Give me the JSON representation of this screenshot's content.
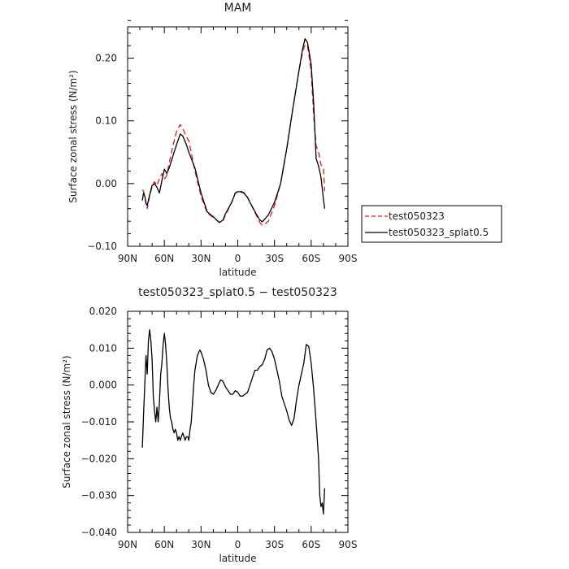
{
  "chart_data": [
    {
      "type": "line",
      "title": "MAM",
      "xlabel": "latitude",
      "ylabel": "Surface zonal stress (N/m²)",
      "xlim": [
        90,
        -90
      ],
      "ylim": [
        -0.1,
        0.25
      ],
      "x_ticks": [
        90,
        60,
        30,
        0,
        -30,
        -60,
        -90
      ],
      "x_tick_labels": [
        "90N",
        "60N",
        "30N",
        "0",
        "30S",
        "60S",
        "90S"
      ],
      "y_ticks": [
        -0.1,
        0.0,
        0.1,
        0.2
      ],
      "y_tick_labels": [
        "−0.10",
        "0.00",
        "0.10",
        "0.20"
      ],
      "legend": {
        "placement": "right",
        "entries": [
          "test050323",
          "test050323_splat0.5"
        ]
      },
      "series": [
        {
          "name": "test050323",
          "color": "#e41a1c",
          "dash": "dashed",
          "x": [
            78,
            77,
            75,
            74,
            72,
            70,
            68,
            66,
            64,
            62,
            60,
            58,
            56,
            53,
            50,
            47,
            45,
            42,
            40,
            35,
            30,
            25,
            20,
            15,
            12,
            10,
            5,
            2,
            0,
            -2,
            -5,
            -8,
            -10,
            -15,
            -18,
            -20,
            -22,
            -25,
            -30,
            -35,
            -40,
            -45,
            -50,
            -53,
            -55,
            -57,
            -60,
            -62,
            -64,
            -66,
            -68,
            -70,
            -71
          ],
          "y": [
            -0.01,
            -0.012,
            -0.03,
            -0.04,
            -0.02,
            -0.005,
            0.003,
            -0.003,
            0.008,
            0.016,
            0.007,
            0.013,
            0.033,
            0.06,
            0.083,
            0.094,
            0.088,
            0.075,
            0.068,
            0.02,
            -0.02,
            -0.047,
            -0.054,
            -0.062,
            -0.059,
            -0.05,
            -0.03,
            -0.015,
            -0.012,
            -0.012,
            -0.014,
            -0.022,
            -0.03,
            -0.05,
            -0.062,
            -0.066,
            -0.065,
            -0.06,
            -0.035,
            0.0,
            0.055,
            0.12,
            0.18,
            0.21,
            0.222,
            0.22,
            0.18,
            0.11,
            0.06,
            0.05,
            0.03,
            0.025,
            -0.012
          ]
        },
        {
          "name": "test050323_splat0.5",
          "color": "#000000",
          "dash": "solid",
          "x": [
            78,
            77,
            76,
            75,
            74,
            72,
            70,
            68,
            66,
            64,
            62,
            60,
            58,
            56,
            53,
            50,
            47,
            45,
            42,
            40,
            35,
            30,
            25,
            20,
            15,
            12,
            10,
            5,
            2,
            0,
            -2,
            -5,
            -8,
            -10,
            -15,
            -18,
            -20,
            -25,
            -30,
            -35,
            -40,
            -45,
            -50,
            -53,
            -55,
            -57,
            -60,
            -62,
            -64,
            -66,
            -68,
            -70,
            -71
          ],
          "y": [
            -0.027,
            -0.015,
            -0.02,
            -0.032,
            -0.035,
            -0.018,
            -0.003,
            0.0,
            -0.006,
            -0.015,
            0.005,
            0.023,
            0.016,
            0.025,
            0.044,
            0.062,
            0.079,
            0.076,
            0.062,
            0.05,
            0.025,
            -0.015,
            -0.045,
            -0.053,
            -0.062,
            -0.058,
            -0.048,
            -0.03,
            -0.015,
            -0.013,
            -0.013,
            -0.015,
            -0.022,
            -0.03,
            -0.048,
            -0.058,
            -0.061,
            -0.05,
            -0.03,
            0.0,
            0.055,
            0.12,
            0.18,
            0.215,
            0.231,
            0.225,
            0.19,
            0.13,
            0.04,
            0.028,
            0.01,
            -0.025,
            -0.04
          ]
        }
      ]
    },
    {
      "type": "line",
      "title": "test050323_splat0.5 − test050323",
      "xlabel": "latitude",
      "ylabel": "Surface zonal stress (N/m²)",
      "xlim": [
        90,
        -90
      ],
      "ylim": [
        -0.04,
        0.02
      ],
      "x_ticks": [
        90,
        60,
        30,
        0,
        -30,
        -60,
        -90
      ],
      "x_tick_labels": [
        "90N",
        "60N",
        "30N",
        "0",
        "30S",
        "60S",
        "90S"
      ],
      "y_ticks": [
        -0.04,
        -0.03,
        -0.02,
        -0.01,
        0.0,
        0.01,
        0.02
      ],
      "y_tick_labels": [
        "−0.040",
        "−0.030",
        "−0.020",
        "−0.010",
        "0.000",
        "0.010",
        "0.020"
      ],
      "series": [
        {
          "color": "#000000",
          "dash": "solid",
          "x": [
            78,
            77,
            76,
            75,
            74,
            73,
            72,
            71,
            70,
            69,
            68,
            67,
            66,
            65,
            64,
            63,
            62,
            61,
            60,
            59,
            58,
            57,
            56,
            55,
            54,
            53,
            52,
            51,
            50,
            49,
            48,
            47,
            46,
            45,
            44,
            43,
            42,
            41,
            40,
            39,
            38,
            37,
            36,
            35,
            33,
            31,
            30,
            28,
            26,
            24,
            22,
            20,
            18,
            16,
            14,
            12,
            10,
            8,
            6,
            4,
            2,
            0,
            -2,
            -4,
            -6,
            -8,
            -10,
            -12,
            -14,
            -16,
            -18,
            -20,
            -22,
            -24,
            -26,
            -28,
            -30,
            -32,
            -34,
            -36,
            -38,
            -40,
            -42,
            -44,
            -46,
            -48,
            -50,
            -52,
            -54,
            -56,
            -58,
            -60,
            -62,
            -64,
            -66,
            -67,
            -68,
            -69,
            -70,
            -71
          ],
          "y": [
            -0.017,
            -0.008,
            0.0,
            0.008,
            0.003,
            0.012,
            0.015,
            0.012,
            0.007,
            -0.003,
            -0.007,
            -0.01,
            -0.006,
            -0.01,
            -0.005,
            0.003,
            0.006,
            0.011,
            0.014,
            0.011,
            0.006,
            -0.001,
            -0.006,
            -0.009,
            -0.01,
            -0.012,
            -0.013,
            -0.012,
            -0.013,
            -0.015,
            -0.014,
            -0.015,
            -0.014,
            -0.013,
            -0.014,
            -0.015,
            -0.014,
            -0.014,
            -0.015,
            -0.012,
            -0.01,
            -0.005,
            0.0,
            0.004,
            0.008,
            0.0095,
            0.009,
            0.007,
            0.004,
            0.0,
            -0.002,
            -0.0025,
            -0.0015,
            0.0,
            0.0014,
            0.001,
            -0.0005,
            -0.0015,
            -0.0025,
            -0.0025,
            -0.0015,
            -0.002,
            -0.003,
            -0.003,
            -0.0025,
            -0.002,
            0.0,
            0.002,
            0.004,
            0.004,
            0.005,
            0.0055,
            0.007,
            0.0095,
            0.01,
            0.009,
            0.007,
            0.004,
            0.001,
            -0.003,
            -0.005,
            -0.007,
            -0.0095,
            -0.011,
            -0.009,
            -0.004,
            0.0,
            0.003,
            0.006,
            0.011,
            0.0105,
            0.006,
            -0.001,
            -0.01,
            -0.02,
            -0.03,
            -0.033,
            -0.032,
            -0.035,
            -0.028
          ]
        }
      ]
    }
  ]
}
